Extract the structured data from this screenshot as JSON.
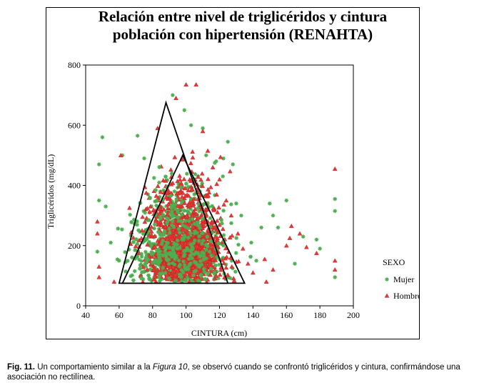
{
  "chart_data": {
    "type": "scatter",
    "title_lines": [
      "Relación entre nivel de triglicéridos y cintura",
      "población con hipertensión (RENAHTA)"
    ],
    "xlabel": "CINTURA (cm)",
    "ylabel": "Triglicéridos (mg/dL)",
    "xlim": [
      40,
      200
    ],
    "ylim": [
      0,
      800
    ],
    "x_ticks": [
      40,
      60,
      80,
      100,
      120,
      140,
      160,
      180,
      200
    ],
    "y_ticks": [
      0,
      200,
      400,
      600,
      800
    ],
    "legend": {
      "title": "SEXO",
      "placement": "right",
      "entries": [
        "Mujer",
        "Hombre"
      ]
    },
    "series": [
      {
        "name": "Mujer",
        "marker": "star",
        "color": "#4caf50",
        "cluster": {
          "x_mean": 96,
          "x_sd": 13,
          "y_min": 75,
          "y_mode": 150,
          "note_count": 900
        },
        "points": [
          [
            48,
            470
          ],
          [
            48,
            350
          ],
          [
            47,
            180
          ],
          [
            50,
            560
          ],
          [
            52,
            330
          ],
          [
            62,
            500
          ],
          [
            55,
            210
          ],
          [
            71,
            565
          ],
          [
            75,
            490
          ],
          [
            92,
            700
          ],
          [
            99,
            650
          ],
          [
            103,
            600
          ],
          [
            110,
            590
          ],
          [
            112,
            500
          ],
          [
            118,
            480
          ],
          [
            122,
            430
          ],
          [
            125,
            545
          ],
          [
            128,
            470
          ],
          [
            130,
            340
          ],
          [
            133,
            300
          ],
          [
            139,
            210
          ],
          [
            142,
            150
          ],
          [
            145,
            260
          ],
          [
            150,
            340
          ],
          [
            152,
            300
          ],
          [
            155,
            260
          ],
          [
            160,
            350
          ],
          [
            165,
            140
          ],
          [
            170,
            230
          ],
          [
            178,
            220
          ],
          [
            180,
            190
          ],
          [
            189,
            355
          ],
          [
            189,
            315
          ],
          [
            189,
            95
          ],
          [
            60,
            150
          ]
        ]
      },
      {
        "name": "Hombre",
        "marker": "triangle",
        "color": "#e53935",
        "cluster": {
          "x_mean": 100,
          "x_sd": 11,
          "y_min": 75,
          "y_mode": 170,
          "note_count": 1100
        },
        "points": [
          [
            47,
            280
          ],
          [
            47,
            240
          ],
          [
            48,
            130
          ],
          [
            48,
            95
          ],
          [
            57,
            80
          ],
          [
            61,
            500
          ],
          [
            83,
            590
          ],
          [
            94,
            690
          ],
          [
            100,
            735
          ],
          [
            106,
            735
          ],
          [
            110,
            580
          ],
          [
            113,
            515
          ],
          [
            116,
            460
          ],
          [
            120,
            420
          ],
          [
            124,
            350
          ],
          [
            127,
            300
          ],
          [
            131,
            240
          ],
          [
            134,
            190
          ],
          [
            137,
            140
          ],
          [
            140,
            110
          ],
          [
            148,
            80
          ],
          [
            160,
            200
          ],
          [
            163,
            265
          ],
          [
            168,
            240
          ],
          [
            172,
            195
          ],
          [
            178,
            175
          ],
          [
            189,
            455
          ],
          [
            189,
            150
          ],
          [
            189,
            120
          ],
          [
            147,
            155
          ],
          [
            152,
            120
          ],
          [
            162,
            225
          ]
        ]
      }
    ],
    "annotations": [
      {
        "type": "triangle",
        "vertices": [
          [
            60,
            75
          ],
          [
            88,
            675
          ],
          [
            125,
            75
          ]
        ]
      },
      {
        "type": "triangle",
        "vertices": [
          [
            62,
            75
          ],
          [
            98,
            500
          ],
          [
            135,
            75
          ]
        ]
      }
    ]
  },
  "caption": {
    "label": "Fig. 11.",
    "text_before": " Un comportamiento similar a la ",
    "ref": "Figura 10",
    "text_after": ", se observó cuando se confrontó triglicéridos y cintura, confirmándose una asociación no rectilínea."
  }
}
